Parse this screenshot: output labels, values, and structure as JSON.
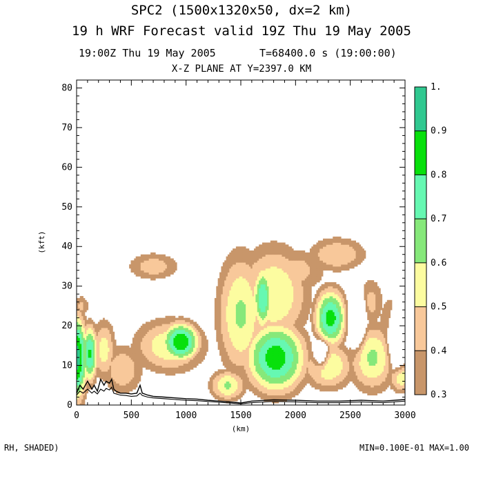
{
  "header": {
    "title_line1": "SPC2 (1500x1320x50, dx=2 km)",
    "title_line2": "19 h WRF Forecast valid 19Z Thu 19 May 2005",
    "valid_time": "19:00Z Thu 19 May 2005",
    "sim_time": "T=68400.0 s (19:00:00)",
    "plane": "X-Z PLANE AT Y=2397.0 KM"
  },
  "footer": {
    "field_label": "RH, SHADED)",
    "range_label": "MIN=0.100E-01 MAX=1.00"
  },
  "chart_data": {
    "type": "heatmap",
    "variable": "RH",
    "xlabel": "(km)",
    "ylabel": "(kft)",
    "xlim": [
      0,
      3000
    ],
    "ylim": [
      0,
      82
    ],
    "x_ticks": [
      0,
      500,
      1000,
      1500,
      2000,
      2500,
      3000
    ],
    "x_tick_labels": [
      "0",
      "500",
      "1000",
      "1500",
      "2000",
      "2500",
      "3000"
    ],
    "y_ticks": [
      0,
      10,
      20,
      30,
      40,
      50,
      60,
      70,
      80
    ],
    "y_tick_labels": [
      "0",
      "10",
      "20",
      "30",
      "40",
      "50",
      "60",
      "70",
      "80"
    ],
    "colorbar": {
      "boundaries": [
        0.3,
        0.4,
        0.5,
        0.6,
        0.7,
        0.8,
        0.9,
        1.0
      ],
      "tick_labels": [
        "0.3",
        "0.4",
        "0.5",
        "0.6",
        "0.7",
        "0.8",
        "0.9",
        "1."
      ],
      "colors": [
        "#c8966a",
        "#f8c89a",
        "#fcfca0",
        "#86e87a",
        "#66f8b2",
        "#08e00c",
        "#30c890"
      ]
    },
    "field": {
      "base_humidity": 0.05,
      "blobs": [
        {
          "x": 0,
          "z": 12,
          "rx": 120,
          "rz": 13,
          "peak": 0.95
        },
        {
          "x": 120,
          "z": 13,
          "rx": 90,
          "rz": 9,
          "peak": 0.82
        },
        {
          "x": 250,
          "z": 14,
          "rx": 140,
          "rz": 10,
          "peak": 0.55
        },
        {
          "x": 40,
          "z": 25,
          "rx": 110,
          "rz": 4,
          "peak": 0.42
        },
        {
          "x": 420,
          "z": 9,
          "rx": 260,
          "rz": 9,
          "peak": 0.48
        },
        {
          "x": 850,
          "z": 15,
          "rx": 430,
          "rz": 9,
          "peak": 0.58
        },
        {
          "x": 950,
          "z": 16,
          "rx": 210,
          "rz": 6,
          "peak": 0.9
        },
        {
          "x": 700,
          "z": 35,
          "rx": 330,
          "rz": 5,
          "peak": 0.46
        },
        {
          "x": 1380,
          "z": 5,
          "rx": 210,
          "rz": 5,
          "peak": 0.62
        },
        {
          "x": 1500,
          "z": 23,
          "rx": 280,
          "rz": 20,
          "peak": 0.62
        },
        {
          "x": 1800,
          "z": 28,
          "rx": 420,
          "rz": 16,
          "peak": 0.6
        },
        {
          "x": 1820,
          "z": 12,
          "rx": 340,
          "rz": 11,
          "peak": 0.86
        },
        {
          "x": 1700,
          "z": 27,
          "rx": 110,
          "rz": 10,
          "peak": 0.8
        },
        {
          "x": 2000,
          "z": 34,
          "rx": 400,
          "rz": 8,
          "peak": 0.45
        },
        {
          "x": 2320,
          "z": 22,
          "rx": 180,
          "rz": 9,
          "peak": 0.85
        },
        {
          "x": 2380,
          "z": 38,
          "rx": 360,
          "rz": 6,
          "peak": 0.5
        },
        {
          "x": 2300,
          "z": 10,
          "rx": 300,
          "rz": 8,
          "peak": 0.6
        },
        {
          "x": 2700,
          "z": 12,
          "rx": 280,
          "rz": 11,
          "peak": 0.62
        },
        {
          "x": 2680,
          "z": 26,
          "rx": 180,
          "rz": 9,
          "peak": 0.44
        },
        {
          "x": 2900,
          "z": 20,
          "rx": 200,
          "rz": 12,
          "peak": 0.45
        },
        {
          "x": 2960,
          "z": 7,
          "rx": 150,
          "rz": 5,
          "peak": 0.58
        }
      ],
      "dry_holes": [
        {
          "x": 2560,
          "z": 22,
          "rx": 60,
          "rz": 6,
          "strength": 0.8
        },
        {
          "x": 2920,
          "z": 17,
          "rx": 60,
          "rz": 6,
          "strength": 0.7
        },
        {
          "x": 2230,
          "z": 13,
          "rx": 60,
          "rz": 3,
          "strength": 0.5
        }
      ]
    },
    "terrain": {
      "x": [
        0,
        30,
        60,
        100,
        140,
        160,
        190,
        220,
        250,
        270,
        300,
        320,
        340,
        360,
        400,
        450,
        500,
        550,
        580,
        600,
        650,
        700,
        800,
        900,
        1000,
        1100,
        1200,
        1300,
        1400,
        1500,
        1600,
        1800,
        2000,
        2200,
        2400,
        2600,
        2800,
        3000
      ],
      "z": [
        3,
        5,
        4,
        6,
        4,
        5,
        3.5,
        6.5,
        5,
        6,
        5.5,
        6.5,
        4,
        3.5,
        3,
        3,
        2.8,
        3,
        5,
        3,
        2.5,
        2.2,
        2,
        1.8,
        1.6,
        1.5,
        1.2,
        1,
        0.8,
        0.5,
        1,
        1.3,
        1.2,
        1,
        1,
        1.2,
        1,
        1.4
      ],
      "z2": [
        2.5,
        3.5,
        3,
        4,
        3,
        3.5,
        2.8,
        4,
        3.5,
        4.2,
        3.8,
        4.5,
        3,
        2.8,
        2.5,
        2.4,
        2.2,
        2.3,
        3,
        2.4,
        2,
        1.8,
        1.6,
        1.4,
        1.2,
        1.1,
        0.9,
        0.7,
        0.5,
        0.3,
        0.6,
        0.9,
        0.8,
        0.6,
        0.6,
        0.8,
        0.6,
        1
      ]
    }
  }
}
